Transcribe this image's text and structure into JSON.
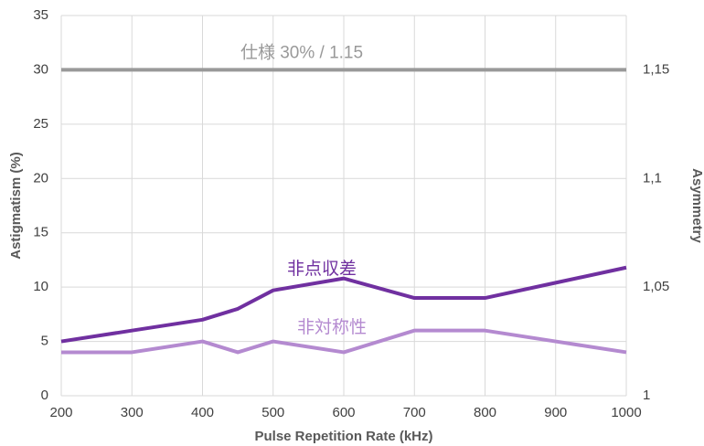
{
  "chart_data": {
    "type": "line",
    "x": [
      200,
      300,
      400,
      450,
      500,
      600,
      700,
      800,
      900,
      1000
    ],
    "series": [
      {
        "name": "非点収差",
        "color": "#7030a0",
        "values": [
          5,
          6,
          7,
          8,
          9.7,
          10.8,
          9,
          9,
          10.4,
          11.8
        ]
      },
      {
        "name": "非対称性",
        "color": "#b48ad0",
        "values": [
          4,
          4,
          5,
          4,
          5,
          4,
          6,
          6,
          5,
          4
        ]
      }
    ],
    "annotation": {
      "text": "仕様 30% / 1.15",
      "value": 30,
      "color": "#999999"
    },
    "xlabel": "Pulse Repetition Rate (kHz)",
    "ylabel": "Astigmatism (%)",
    "y2label": "Asymmetry",
    "xlim": [
      200,
      1000
    ],
    "xticks": [
      200,
      300,
      400,
      500,
      600,
      700,
      800,
      900,
      1000
    ],
    "ylim": [
      0,
      35
    ],
    "yticks": [
      0,
      5,
      10,
      15,
      20,
      25,
      30,
      35
    ],
    "y2lim": [
      1,
      1.175
    ],
    "y2ticks": [
      1,
      {
        "value": 1.05,
        "label": "1,05"
      },
      {
        "value": 1.1,
        "label": "1,1"
      },
      {
        "value": 1.15,
        "label": "1,15"
      }
    ],
    "grid": true
  }
}
